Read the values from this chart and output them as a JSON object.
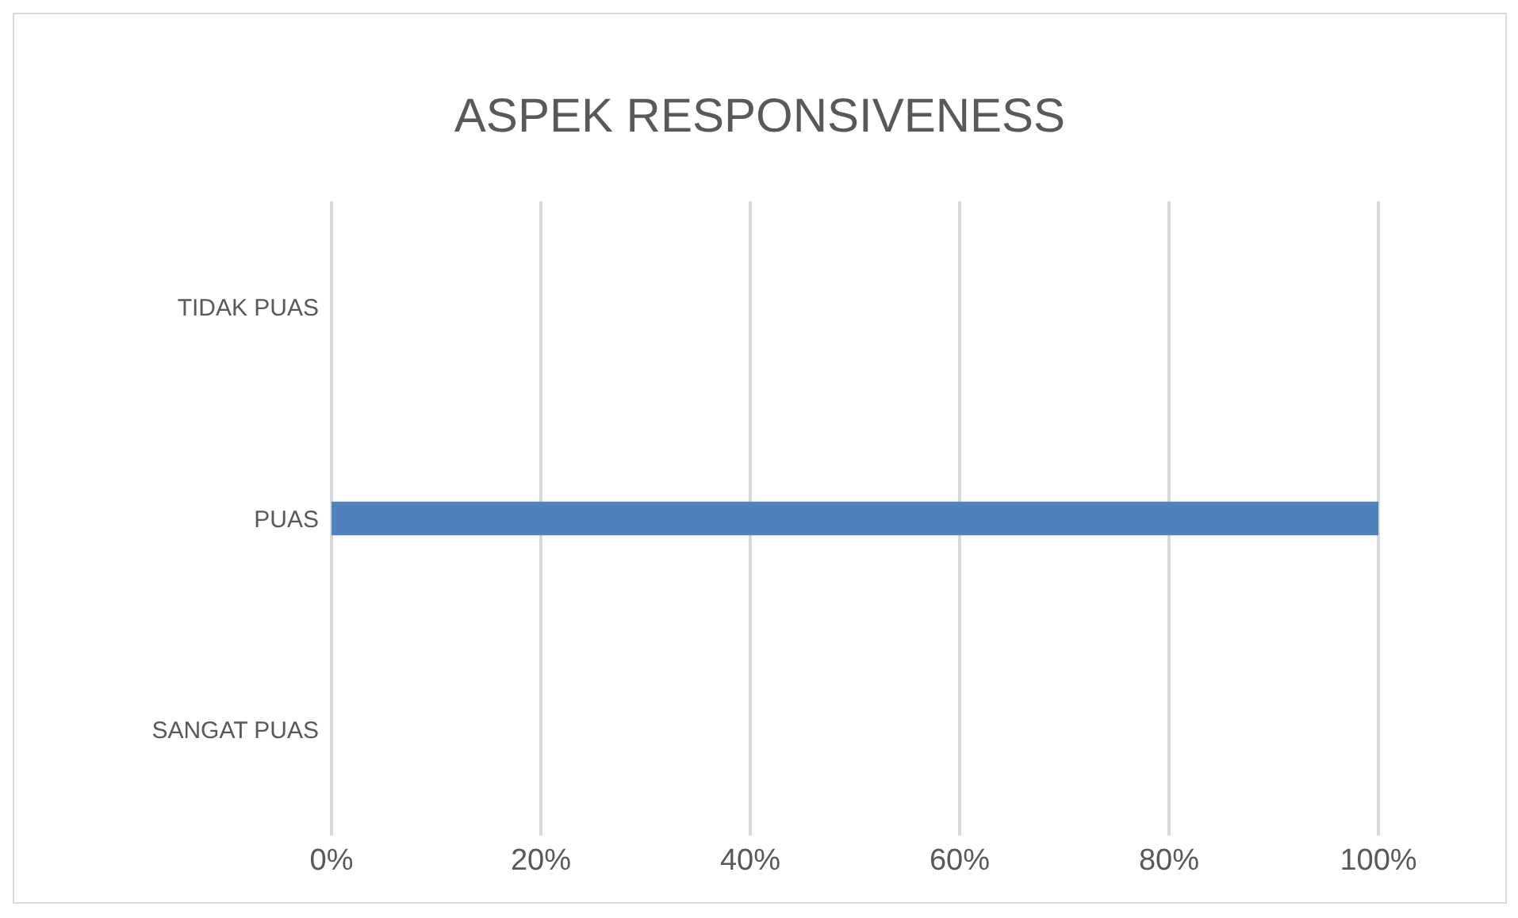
{
  "chart_data": {
    "type": "bar",
    "orientation": "horizontal",
    "title": "ASPEK RESPONSIVENESS",
    "categories": [
      "TIDAK PUAS",
      "PUAS",
      "SANGAT PUAS"
    ],
    "values": [
      0,
      100,
      0
    ],
    "color": "#4f81bd",
    "xlim": [
      0,
      100
    ],
    "xticks": [
      {
        "value": 0,
        "label": "0%"
      },
      {
        "value": 20,
        "label": "20%"
      },
      {
        "value": 40,
        "label": "40%"
      },
      {
        "value": 60,
        "label": "60%"
      },
      {
        "value": 80,
        "label": "80%"
      },
      {
        "value": 100,
        "label": "100%"
      }
    ],
    "grid": "x"
  }
}
